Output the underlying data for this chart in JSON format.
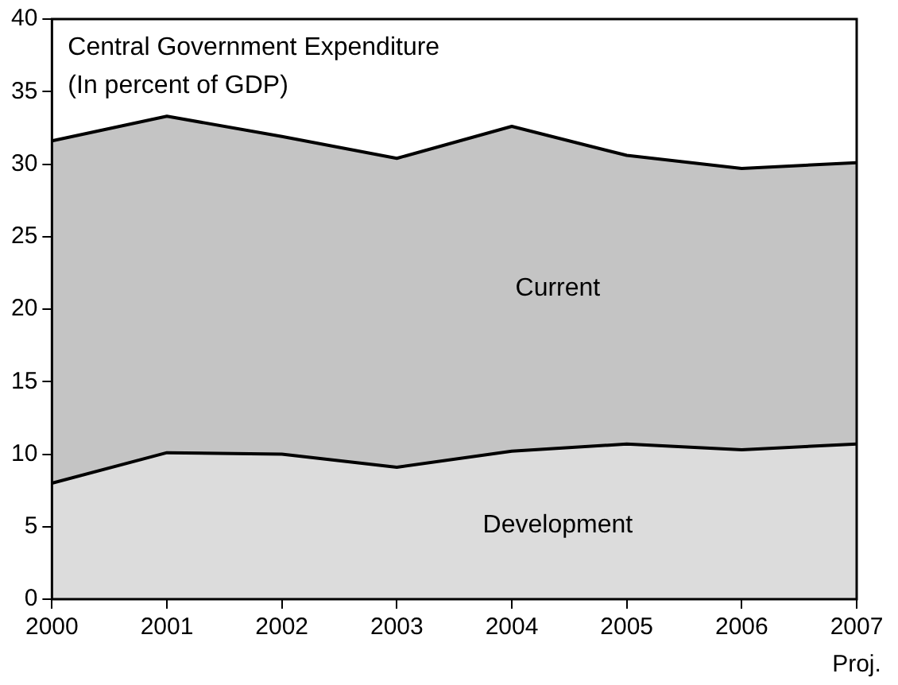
{
  "chart_data": {
    "type": "area",
    "stacked": true,
    "title": "Central Government Expenditure\n(In percent of GDP)",
    "x": [
      2000,
      2001,
      2002,
      2003,
      2004,
      2005,
      2006,
      2007
    ],
    "series": [
      {
        "name": "Development",
        "color": "#dcdcdc",
        "values": [
          8.0,
          10.1,
          10.0,
          9.1,
          10.2,
          10.7,
          10.3,
          10.7
        ]
      },
      {
        "name": "Current",
        "color": "#c4c4c4",
        "values": [
          23.6,
          23.2,
          21.9,
          21.3,
          22.4,
          19.9,
          19.4,
          19.4
        ]
      }
    ],
    "xlim": [
      2000,
      2007
    ],
    "xticks": [
      2000,
      2001,
      2002,
      2003,
      2004,
      2005,
      2006,
      2007
    ],
    "ylim": [
      0,
      40
    ],
    "yticks": [
      0,
      5,
      10,
      15,
      20,
      25,
      30,
      35,
      40
    ],
    "grid": false,
    "legend": false,
    "annotations": [
      "Proj."
    ]
  }
}
